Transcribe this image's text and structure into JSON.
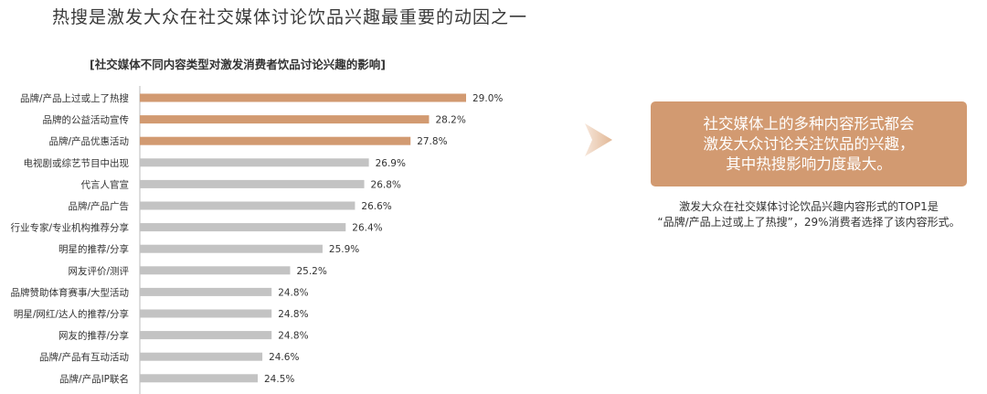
{
  "page_title": "热搜是激发大众在社交媒体讨论饮品兴趣最重要的动因之一",
  "callout": {
    "lines": [
      "社交媒体上的多种内容形式都会",
      "激发大众讨论关注饮品的兴趣，",
      "其中热搜影响力度最大。"
    ]
  },
  "note": {
    "lines": [
      "激发大众在社交媒体讨论饮品兴趣内容形式的TOP1是",
      "“品牌/产品上过或上了热搜”，29%消费者选择了该内容形式。"
    ]
  },
  "colors": {
    "highlight": "#d29a71",
    "normal": "#c3c3c3",
    "axis": "#bbbbbb"
  },
  "chart_data": {
    "type": "bar",
    "orientation": "horizontal",
    "title": "[社交媒体不同内容类型对激发消费者饮品讨论兴趣的影响]",
    "categories": [
      "品牌/产品上过或上了热搜",
      "品牌的公益活动宣传",
      "品牌/产品优惠活动",
      "电视剧或综艺节目中出现",
      "代言人官宣",
      "品牌/产品广告",
      "行业专家/专业机构推荐分享",
      "明星的推荐/分享",
      "网友评价/测评",
      "品牌赞助体育赛事/大型活动",
      "明星/网红/达人的推荐/分享",
      "网友的推荐/分享",
      "品牌/产品有互动活动",
      "品牌/产品IP联名"
    ],
    "values": [
      29.0,
      28.2,
      27.8,
      26.9,
      26.8,
      26.6,
      26.4,
      25.9,
      25.2,
      24.8,
      24.8,
      24.8,
      24.6,
      24.5
    ],
    "value_labels": [
      "29.0%",
      "28.2%",
      "27.8%",
      "26.9%",
      "26.8%",
      "26.6%",
      "26.4%",
      "25.9%",
      "25.2%",
      "24.8%",
      "24.8%",
      "24.8%",
      "24.6%",
      "24.5%"
    ],
    "highlighted_count": 3,
    "unit": "%"
  }
}
